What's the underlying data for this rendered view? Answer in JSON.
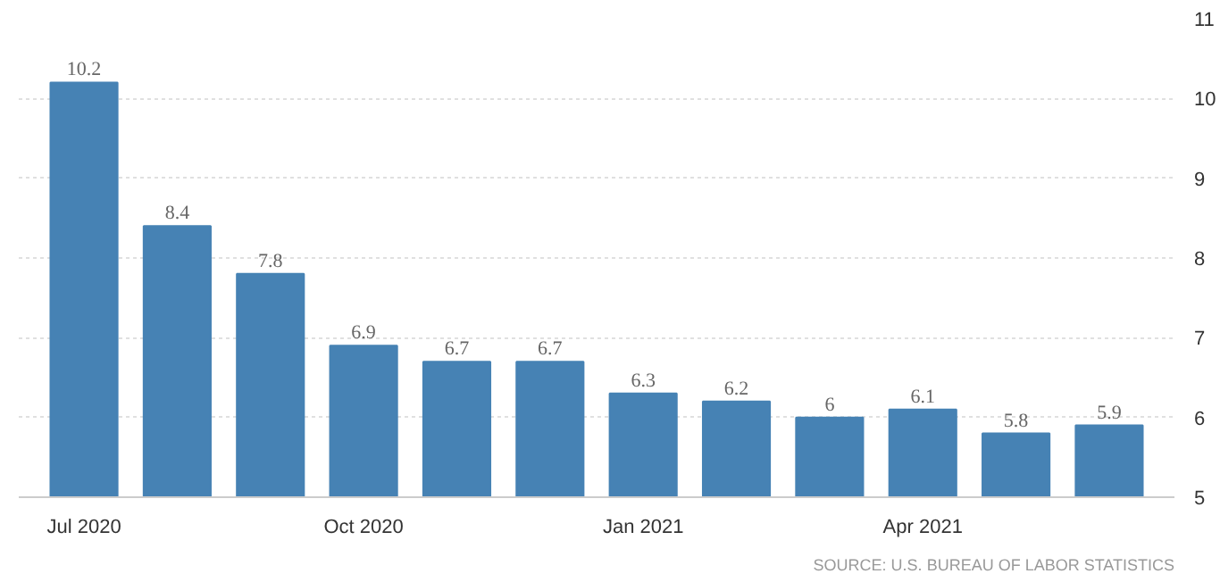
{
  "chart_data": {
    "type": "bar",
    "categories": [
      "Jul 2020",
      null,
      null,
      "Oct 2020",
      null,
      null,
      "Jan 2021",
      null,
      null,
      "Apr 2021",
      null,
      null
    ],
    "values": [
      10.2,
      8.4,
      7.8,
      6.9,
      6.7,
      6.7,
      6.3,
      6.2,
      6,
      6.1,
      5.8,
      5.9
    ],
    "color": "#4682b4",
    "ylim": [
      5,
      11
    ],
    "yticks": [
      5,
      6,
      7,
      8,
      9,
      10,
      11
    ],
    "grid": "y",
    "data_labels": true,
    "annotations": [
      "SOURCE: U.S. BUREAU OF LABOR STATISTICS"
    ]
  }
}
